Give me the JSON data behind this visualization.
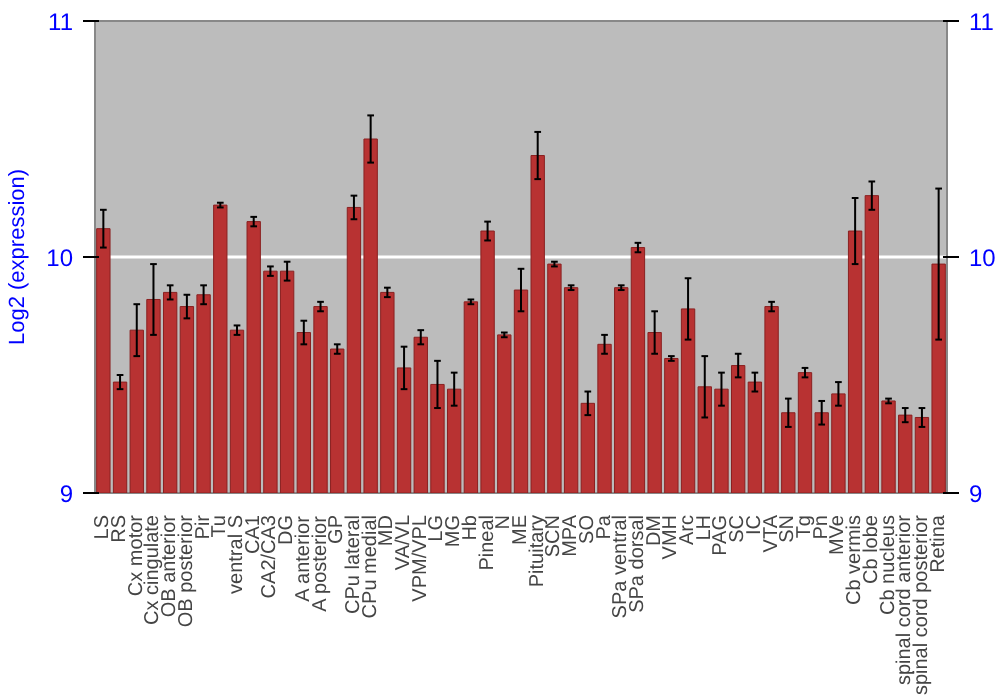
{
  "chart_data": {
    "type": "bar",
    "ylabel": "Log2 (expression)",
    "categories": [
      "LS",
      "RS",
      "Cx motor",
      "Cx cingulate",
      "OB anterior",
      "OB posterior",
      "Pir",
      "Tu",
      "ventral S",
      "CA1",
      "CA2/CA3",
      "DG",
      "A anterior",
      "A posterior",
      "GP",
      "CPu lateral",
      "CPu medial",
      "MD",
      "VA/VL",
      "VPM/VPL",
      "LG",
      "MG",
      "Hb",
      "Pineal",
      "N",
      "ME",
      "Pituitary",
      "SCN",
      "MPA",
      "SO",
      "Pa",
      "SPa ventral",
      "SPa dorsal",
      "DM",
      "VMH",
      "Arc",
      "LH",
      "PAG",
      "SC",
      "IC",
      "VTA",
      "SN",
      "Tg",
      "Pn",
      "MVe",
      "Cb vermis",
      "Cb lobe",
      "Cb nucleus",
      "spinal cord anterior",
      "spinal cord posterior",
      "Retina"
    ],
    "values": [
      10.12,
      9.47,
      9.69,
      9.82,
      9.85,
      9.79,
      9.84,
      10.22,
      9.69,
      10.15,
      9.94,
      9.94,
      9.68,
      9.79,
      9.61,
      10.21,
      10.5,
      9.85,
      9.53,
      9.66,
      9.46,
      9.44,
      9.81,
      10.11,
      9.67,
      9.86,
      10.43,
      9.97,
      9.87,
      9.38,
      9.63,
      9.87,
      10.04,
      9.68,
      9.57,
      9.78,
      9.45,
      9.44,
      9.54,
      9.47,
      9.79,
      9.34,
      9.51,
      9.34,
      9.42,
      10.11,
      10.26,
      9.39,
      9.33,
      9.32,
      9.97
    ],
    "errors": [
      0.08,
      0.03,
      0.11,
      0.15,
      0.03,
      0.05,
      0.04,
      0.01,
      0.02,
      0.02,
      0.02,
      0.04,
      0.05,
      0.02,
      0.02,
      0.05,
      0.1,
      0.02,
      0.09,
      0.03,
      0.1,
      0.07,
      0.01,
      0.04,
      0.01,
      0.09,
      0.1,
      0.01,
      0.01,
      0.05,
      0.04,
      0.01,
      0.02,
      0.09,
      0.01,
      0.13,
      0.13,
      0.07,
      0.05,
      0.04,
      0.02,
      0.06,
      0.02,
      0.05,
      0.05,
      0.14,
      0.06,
      0.01,
      0.03,
      0.04,
      0.32
    ],
    "color": "#b83232",
    "ylim": [
      9,
      11
    ],
    "yticks": [
      9,
      10,
      11
    ],
    "y2lim": [
      9,
      11
    ],
    "y2ticks": [
      9,
      10,
      11
    ],
    "grid": "y"
  }
}
